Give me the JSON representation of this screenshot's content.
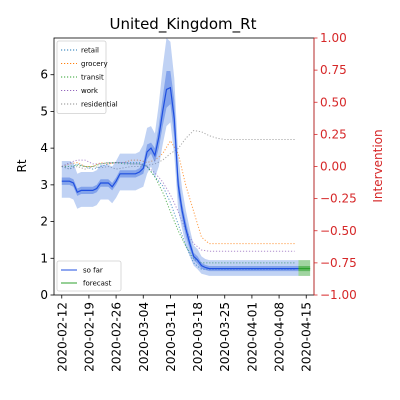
{
  "chart_data": {
    "type": "line",
    "title": "United_Kingdom_Rt",
    "ylabel": "Rt",
    "ylabel_right": "Intervention",
    "xlabel": "",
    "x_ticks": [
      "2020-02-12",
      "2020-02-19",
      "2020-02-26",
      "2020-03-04",
      "2020-03-11",
      "2020-03-18",
      "2020-03-25",
      "2020-04-01",
      "2020-04-08",
      "2020-04-15"
    ],
    "y_ticks": [
      "0",
      "1",
      "2",
      "3",
      "4",
      "5",
      "6"
    ],
    "y2_ticks": [
      "1.00",
      "0.75",
      "0.50",
      "0.25",
      "0.00",
      "−0.25",
      "−0.50",
      "−0.75",
      "−1.00"
    ],
    "x_range": [
      "2020-02-10",
      "2020-04-17"
    ],
    "ylim": [
      0,
      7
    ],
    "y2lim": [
      -1.0,
      1.0
    ],
    "grid": false,
    "legend_top": {
      "placement": "top-left",
      "entries": [
        {
          "name": "retail",
          "color": "#1f77b4"
        },
        {
          "name": "grocery",
          "color": "#ff7f0e"
        },
        {
          "name": "transit",
          "color": "#2ca02c"
        },
        {
          "name": "work",
          "color": "#9467bd"
        },
        {
          "name": "residential",
          "color": "#8c8c8c"
        }
      ]
    },
    "legend_bottom": {
      "placement": "bottom-left",
      "entries": [
        {
          "name": "so far",
          "color": "#1f4fe0"
        },
        {
          "name": "forecast",
          "color": "#2ca02c"
        }
      ]
    },
    "rt": {
      "days": [
        0,
        1,
        2,
        3,
        4,
        5,
        6,
        7,
        8,
        9,
        10,
        11,
        12,
        13,
        14,
        15,
        16,
        17,
        18,
        19,
        20,
        21,
        22,
        23,
        24,
        25,
        26,
        27,
        28,
        29,
        30,
        31,
        32,
        33,
        34,
        35,
        36,
        37,
        38,
        39,
        40,
        41,
        42,
        43,
        44,
        45,
        46,
        47,
        48,
        49,
        50,
        51,
        52,
        53,
        54,
        55,
        56,
        57,
        58,
        59,
        60,
        61,
        62,
        63,
        64
      ],
      "dates_start": "2020-02-12",
      "median": [
        3.1,
        3.1,
        3.1,
        3.05,
        2.8,
        2.85,
        2.85,
        2.85,
        2.85,
        2.9,
        3.05,
        3.05,
        3.05,
        2.95,
        3.1,
        3.3,
        3.3,
        3.3,
        3.3,
        3.3,
        3.35,
        3.45,
        3.9,
        4.0,
        3.8,
        4.3,
        5.0,
        5.6,
        5.65,
        4.8,
        3.0,
        2.3,
        1.8,
        1.4,
        1.05,
        0.95,
        0.8,
        0.75,
        0.72,
        0.72,
        0.72,
        0.72,
        0.72,
        0.72,
        0.72,
        0.72,
        0.72,
        0.72,
        0.72,
        0.72,
        0.72,
        0.72,
        0.72,
        0.72,
        0.72,
        0.72,
        0.72,
        0.72,
        0.72,
        0.72,
        0.72,
        0.72,
        0.72,
        0.72,
        0.72
      ],
      "inner_lo": [
        3.0,
        3.0,
        3.0,
        2.95,
        2.7,
        2.75,
        2.75,
        2.75,
        2.75,
        2.8,
        2.95,
        2.95,
        2.95,
        2.85,
        3.0,
        3.2,
        3.2,
        3.2,
        3.2,
        3.2,
        3.25,
        3.3,
        3.7,
        3.85,
        3.6,
        4.0,
        4.6,
        5.1,
        5.2,
        4.3,
        2.7,
        2.1,
        1.6,
        1.25,
        0.95,
        0.85,
        0.72,
        0.68,
        0.65,
        0.65,
        0.65,
        0.65,
        0.65,
        0.65,
        0.65,
        0.65,
        0.65,
        0.65,
        0.65,
        0.65,
        0.65,
        0.65,
        0.65,
        0.65,
        0.65,
        0.65,
        0.65,
        0.65,
        0.65,
        0.65,
        0.65,
        0.65,
        0.65,
        0.65,
        0.65
      ],
      "inner_hi": [
        3.2,
        3.2,
        3.2,
        3.15,
        2.9,
        2.95,
        2.95,
        2.95,
        2.95,
        3.0,
        3.15,
        3.15,
        3.15,
        3.05,
        3.2,
        3.4,
        3.4,
        3.4,
        3.4,
        3.4,
        3.45,
        3.6,
        4.1,
        4.15,
        4.0,
        4.6,
        5.4,
        6.1,
        6.1,
        5.3,
        3.3,
        2.5,
        2.0,
        1.55,
        1.15,
        1.05,
        0.88,
        0.82,
        0.79,
        0.79,
        0.79,
        0.79,
        0.79,
        0.79,
        0.79,
        0.79,
        0.79,
        0.79,
        0.79,
        0.79,
        0.79,
        0.79,
        0.79,
        0.79,
        0.79,
        0.79,
        0.79,
        0.79,
        0.79,
        0.79,
        0.79,
        0.79,
        0.79,
        0.79,
        0.79
      ],
      "outer_lo": [
        2.65,
        2.65,
        2.65,
        2.6,
        2.35,
        2.4,
        2.4,
        2.4,
        2.4,
        2.45,
        2.6,
        2.6,
        2.6,
        2.5,
        2.65,
        2.85,
        2.85,
        2.85,
        2.85,
        2.85,
        2.9,
        2.95,
        3.3,
        3.5,
        3.2,
        3.5,
        4.1,
        4.6,
        4.7,
        3.8,
        2.3,
        1.8,
        1.35,
        1.05,
        0.8,
        0.7,
        0.58,
        0.55,
        0.52,
        0.52,
        0.52,
        0.52,
        0.52,
        0.52,
        0.52,
        0.52,
        0.52,
        0.52,
        0.52,
        0.52,
        0.52,
        0.52,
        0.52,
        0.52,
        0.52,
        0.52,
        0.52,
        0.52,
        0.52,
        0.52,
        0.52,
        0.52,
        0.52,
        0.52,
        0.52
      ],
      "outer_hi": [
        3.65,
        3.65,
        3.65,
        3.6,
        3.3,
        3.35,
        3.35,
        3.35,
        3.35,
        3.4,
        3.55,
        3.55,
        3.55,
        3.5,
        3.65,
        3.85,
        3.85,
        3.85,
        3.85,
        3.85,
        3.9,
        4.1,
        4.55,
        4.6,
        4.4,
        5.2,
        6.2,
        7.0,
        6.9,
        5.9,
        3.8,
        2.9,
        2.3,
        1.8,
        1.35,
        1.25,
        1.05,
        0.98,
        0.95,
        0.95,
        0.95,
        0.95,
        0.95,
        0.95,
        0.95,
        0.95,
        0.95,
        0.95,
        0.95,
        0.95,
        0.95,
        0.95,
        0.95,
        0.95,
        0.95,
        0.95,
        0.95,
        0.95,
        0.95,
        0.95,
        0.95,
        0.95,
        0.95,
        0.95,
        0.95
      ]
    },
    "rt_end_day": 61,
    "forecast": {
      "start_day": 61,
      "end_day": 64,
      "median": 0.72,
      "inner": [
        0.65,
        0.79
      ],
      "outer": [
        0.52,
        0.95
      ]
    },
    "interventions": {
      "days": [
        0,
        2,
        4,
        6,
        8,
        10,
        12,
        14,
        16,
        18,
        20,
        22,
        24,
        26,
        28,
        30,
        32,
        34,
        36,
        38,
        40,
        42,
        44,
        46,
        48,
        50,
        52,
        54,
        56,
        58,
        60
      ],
      "retail": [
        0.0,
        -0.02,
        0.02,
        0.0,
        -0.02,
        0.0,
        0.02,
        0.03,
        0.03,
        0.03,
        0.03,
        0.0,
        -0.08,
        -0.15,
        -0.28,
        -0.45,
        -0.62,
        -0.75,
        -0.8,
        -0.8,
        -0.8,
        -0.8,
        -0.8,
        -0.8,
        -0.8,
        -0.8,
        -0.8,
        -0.8,
        -0.8,
        -0.8,
        -0.8
      ],
      "grocery": [
        0.0,
        0.02,
        0.03,
        0.0,
        0.0,
        0.03,
        0.02,
        0.03,
        0.03,
        0.05,
        0.05,
        0.03,
        0.05,
        0.1,
        0.2,
        0.1,
        -0.15,
        -0.35,
        -0.55,
        -0.6,
        -0.6,
        -0.6,
        -0.6,
        -0.6,
        -0.6,
        -0.6,
        -0.6,
        -0.6,
        -0.6,
        -0.6,
        -0.6
      ],
      "transit": [
        0.0,
        0.0,
        0.01,
        0.0,
        0.0,
        0.02,
        0.03,
        0.03,
        0.02,
        0.02,
        0.02,
        0.0,
        -0.08,
        -0.2,
        -0.35,
        -0.5,
        -0.62,
        -0.72,
        -0.75,
        -0.75,
        -0.75,
        -0.75,
        -0.75,
        -0.75,
        -0.75,
        -0.75,
        -0.75,
        -0.75,
        -0.75,
        -0.75,
        -0.75
      ],
      "work": [
        0.0,
        0.03,
        0.05,
        0.05,
        0.02,
        0.02,
        0.03,
        0.03,
        0.03,
        0.02,
        0.02,
        0.0,
        -0.05,
        -0.12,
        -0.22,
        -0.35,
        -0.5,
        -0.6,
        -0.65,
        -0.66,
        -0.66,
        -0.66,
        -0.66,
        -0.66,
        -0.66,
        -0.66,
        -0.66,
        -0.66,
        -0.66,
        -0.66,
        -0.66
      ],
      "residential": [
        0.0,
        -0.02,
        0.0,
        -0.02,
        0.0,
        -0.01,
        0.0,
        -0.02,
        -0.01,
        0.0,
        0.0,
        0.01,
        0.02,
        0.05,
        0.1,
        0.14,
        0.22,
        0.28,
        0.27,
        0.24,
        0.22,
        0.21,
        0.21,
        0.21,
        0.21,
        0.21,
        0.21,
        0.21,
        0.21,
        0.21,
        0.21
      ]
    }
  }
}
